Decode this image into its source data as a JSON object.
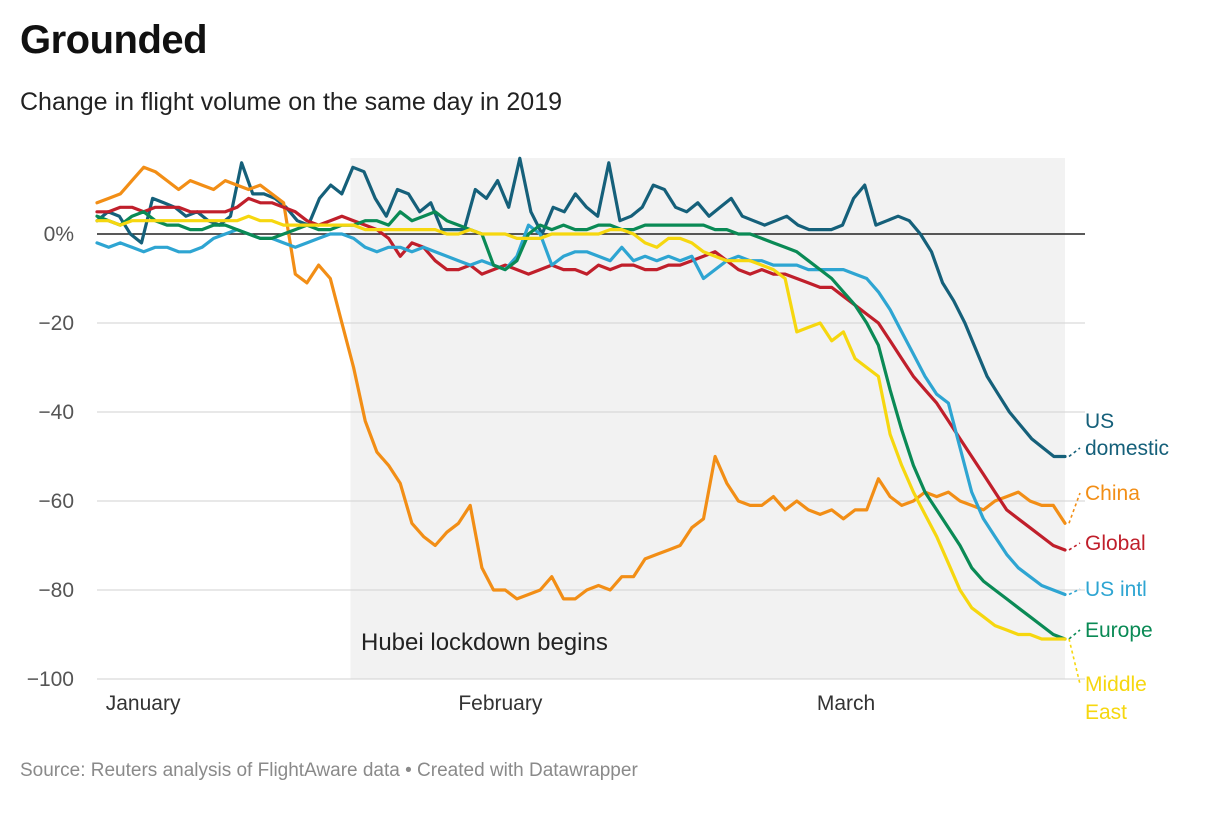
{
  "title": "Grounded",
  "subtitle": "Change in flight volume on the same day in 2019",
  "footer": "Source: Reuters analysis of FlightAware data • Created with Datawrapper",
  "chart_data": {
    "type": "line",
    "title": "Grounded",
    "subtitle": "Change in flight volume on the same day in 2019",
    "ylim": [
      -100,
      17
    ],
    "yticks": [
      0,
      -20,
      -40,
      -60,
      -80,
      -100
    ],
    "ytick_labels": [
      "0%",
      "−20",
      "−40",
      "−60",
      "−80",
      "−100"
    ],
    "x_range": [
      "2020-01-01",
      "2020-03-25"
    ],
    "xticks": [
      {
        "date": "2020-01-05",
        "label": "January"
      },
      {
        "date": "2020-02-05",
        "label": "February"
      },
      {
        "date": "2020-03-06",
        "label": "March"
      }
    ],
    "grid": true,
    "shaded_region": {
      "start": "2020-01-23",
      "end": "2020-03-25",
      "label": "Hubei lockdown begins"
    },
    "legend": "direct labels at right end of lines",
    "series": [
      {
        "name": "US domestic",
        "color": "#15607a",
        "labelLines": [
          "US",
          "domestic"
        ],
        "values": [
          3,
          5,
          4,
          0,
          -2,
          8,
          7,
          6,
          4,
          5,
          3,
          2,
          4,
          16,
          9,
          9,
          8,
          6,
          3,
          2,
          8,
          11,
          9,
          15,
          14,
          8,
          4,
          10,
          9,
          5,
          7,
          1,
          1,
          1,
          10,
          8,
          12,
          6,
          17,
          5,
          0,
          6,
          5,
          9,
          6,
          4,
          16,
          3,
          4,
          6,
          11,
          10,
          6,
          5,
          7,
          4,
          6,
          8,
          4,
          3,
          2,
          3,
          4,
          2,
          1,
          1,
          1,
          2,
          8,
          11,
          2,
          3,
          4,
          3,
          0,
          -4,
          -11,
          -15,
          -20,
          -26,
          -32,
          -36,
          -40,
          -43,
          -46,
          -48,
          -50,
          -50
        ]
      },
      {
        "name": "China",
        "color": "#f28e16",
        "labelLines": [
          "China"
        ],
        "values": [
          7,
          8,
          9,
          12,
          15,
          14,
          12,
          10,
          12,
          11,
          10,
          12,
          11,
          10,
          11,
          9,
          7,
          -9,
          -11,
          -7,
          -10,
          -20,
          -30,
          -42,
          -49,
          -52,
          -56,
          -65,
          -68,
          -70,
          -67,
          -65,
          -61,
          -75,
          -80,
          -80,
          -82,
          -81,
          -80,
          -77,
          -82,
          -82,
          -80,
          -79,
          -80,
          -77,
          -77,
          -73,
          -72,
          -71,
          -70,
          -66,
          -64,
          -50,
          -56,
          -60,
          -61,
          -61,
          -59,
          -62,
          -60,
          -62,
          -63,
          -62,
          -64,
          -62,
          -62,
          -55,
          -59,
          -61,
          -60,
          -58,
          -59,
          -58,
          -60,
          -61,
          -62,
          -60,
          -59,
          -58,
          -60,
          -61,
          -61,
          -65
        ]
      },
      {
        "name": "Global",
        "color": "#c01f2b",
        "labelLines": [
          "Global"
        ],
        "values": [
          5,
          5,
          6,
          6,
          5,
          6,
          6,
          6,
          5,
          5,
          5,
          5,
          6,
          8,
          7,
          7,
          6,
          5,
          3,
          2,
          3,
          4,
          3,
          2,
          1,
          -1,
          -5,
          -2,
          -3,
          -6,
          -8,
          -8,
          -7,
          -9,
          -8,
          -7,
          -8,
          -9,
          -8,
          -7,
          -8,
          -8,
          -9,
          -7,
          -8,
          -7,
          -7,
          -8,
          -8,
          -7,
          -7,
          -6,
          -5,
          -4,
          -6,
          -8,
          -9,
          -8,
          -9,
          -9,
          -10,
          -11,
          -12,
          -12,
          -14,
          -16,
          -18,
          -20,
          -24,
          -28,
          -32,
          -35,
          -38,
          -42,
          -46,
          -50,
          -54,
          -58,
          -62,
          -64,
          -66,
          -68,
          -70,
          -71
        ]
      },
      {
        "name": "US intl",
        "color": "#2ea5d2",
        "labelLines": [
          "US intl"
        ],
        "values": [
          -2,
          -3,
          -2,
          -3,
          -4,
          -3,
          -3,
          -4,
          -4,
          -3,
          -1,
          0,
          1,
          0,
          -1,
          -1,
          -2,
          -3,
          -2,
          -1,
          0,
          0,
          -1,
          -3,
          -4,
          -3,
          -3,
          -4,
          -3,
          -4,
          -5,
          -6,
          -7,
          -6,
          -7,
          -8,
          -5,
          2,
          0,
          -7,
          -5,
          -4,
          -4,
          -5,
          -6,
          -3,
          -6,
          -5,
          -6,
          -5,
          -6,
          -5,
          -10,
          -8,
          -6,
          -5,
          -6,
          -6,
          -7,
          -7,
          -7,
          -8,
          -8,
          -8,
          -8,
          -9,
          -10,
          -13,
          -17,
          -22,
          -27,
          -32,
          -36,
          -38,
          -48,
          -58,
          -64,
          -68,
          -72,
          -75,
          -77,
          -79,
          -80,
          -81
        ]
      },
      {
        "name": "Europe",
        "color": "#0a8a55",
        "labelLines": [
          "Europe"
        ],
        "values": [
          4,
          3,
          2,
          4,
          5,
          3,
          2,
          2,
          1,
          1,
          2,
          2,
          1,
          0,
          -1,
          -1,
          0,
          1,
          2,
          1,
          1,
          2,
          2,
          3,
          3,
          2,
          5,
          3,
          4,
          5,
          3,
          2,
          1,
          0,
          -7,
          -8,
          -6,
          0,
          2,
          1,
          2,
          1,
          1,
          2,
          2,
          1,
          1,
          2,
          2,
          2,
          2,
          2,
          2,
          1,
          1,
          0,
          0,
          -1,
          -2,
          -3,
          -4,
          -6,
          -8,
          -10,
          -13,
          -16,
          -20,
          -25,
          -35,
          -44,
          -52,
          -58,
          -62,
          -66,
          -70,
          -75,
          -78,
          -80,
          -82,
          -84,
          -86,
          -88,
          -90,
          -91
        ]
      },
      {
        "name": "Middle East",
        "color": "#f6d70f",
        "labelLines": [
          "Middle",
          "East"
        ],
        "values": [
          3,
          3,
          2,
          3,
          3,
          3,
          3,
          3,
          3,
          3,
          3,
          3,
          3,
          4,
          3,
          3,
          2,
          2,
          2,
          2,
          2,
          2,
          2,
          1,
          1,
          1,
          1,
          1,
          1,
          1,
          0,
          0,
          1,
          0,
          0,
          0,
          -1,
          -1,
          -1,
          0,
          0,
          0,
          0,
          0,
          1,
          1,
          0,
          -2,
          -3,
          -1,
          -1,
          -2,
          -4,
          -5,
          -6,
          -6,
          -6,
          -7,
          -8,
          -10,
          -22,
          -21,
          -20,
          -24,
          -22,
          -28,
          -30,
          -32,
          -45,
          -52,
          -58,
          -63,
          -68,
          -74,
          -80,
          -84,
          -86,
          -88,
          -89,
          -90,
          -90,
          -91,
          -91,
          -91
        ]
      }
    ]
  }
}
